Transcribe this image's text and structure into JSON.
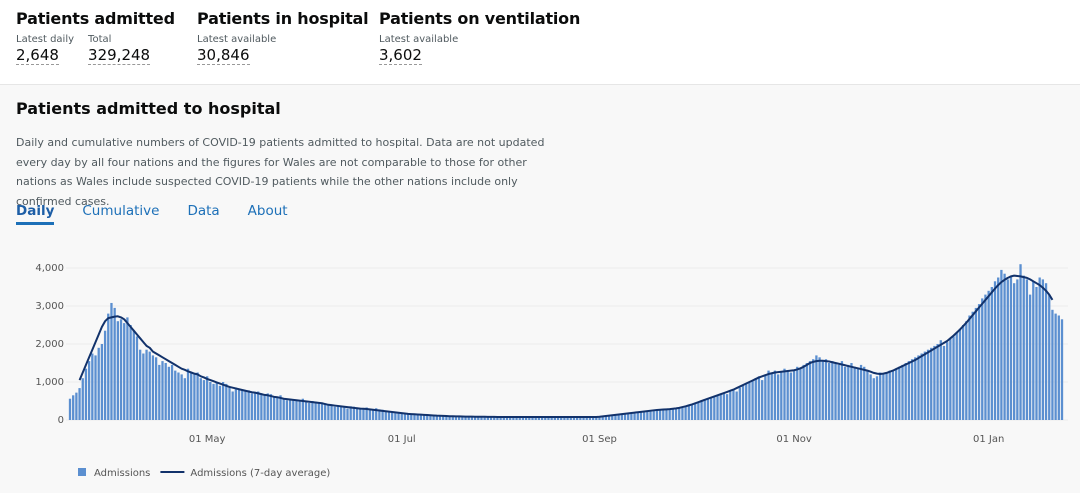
{
  "header": {
    "stats": [
      {
        "title": "Patients admitted",
        "items": [
          {
            "label": "Latest daily",
            "value": "2,648"
          },
          {
            "label": "Total",
            "value": "329,248"
          }
        ]
      },
      {
        "title": "Patients in hospital",
        "items": [
          {
            "label": "Latest available",
            "value": "30,846"
          }
        ]
      },
      {
        "title": "Patients on ventilation",
        "items": [
          {
            "label": "Latest available",
            "value": "3,602"
          }
        ]
      }
    ]
  },
  "card": {
    "title": "Patients admitted to hospital",
    "description": "Daily and cumulative numbers of COVID-19 patients admitted to hospital. Data are not updated every day by all four nations and the figures for Wales are not comparable to those for other nations as Wales include suspected COVID-19 patients while the other nations include only confirmed cases.",
    "tabs": [
      "Daily",
      "Cumulative",
      "Data",
      "About"
    ]
  },
  "chart_data": {
    "type": "bar",
    "categories": [
      null,
      null,
      null,
      null,
      null,
      null,
      null,
      null,
      null,
      null,
      null,
      null,
      null,
      null,
      null,
      null,
      null,
      null,
      null,
      null,
      null,
      null,
      null,
      null,
      null,
      null,
      null,
      null,
      null,
      null,
      null,
      null,
      null,
      null,
      null,
      null,
      null,
      null,
      null,
      null,
      null,
      null,
      null,
      "01 May",
      null,
      null,
      null,
      null,
      null,
      null,
      null,
      null,
      null,
      null,
      null,
      null,
      null,
      null,
      null,
      null,
      null,
      null,
      null,
      null,
      null,
      null,
      null,
      null,
      null,
      null,
      null,
      null,
      null,
      null,
      null,
      null,
      null,
      null,
      null,
      null,
      null,
      null,
      null,
      null,
      null,
      null,
      null,
      null,
      null,
      null,
      null,
      null,
      null,
      null,
      null,
      null,
      null,
      null,
      null,
      null,
      null,
      null,
      null,
      null,
      "01 Jul",
      null,
      null,
      null,
      null,
      null,
      null,
      null,
      null,
      null,
      null,
      null,
      null,
      null,
      null,
      null,
      null,
      null,
      null,
      null,
      null,
      null,
      null,
      null,
      null,
      null,
      null,
      null,
      null,
      null,
      null,
      null,
      null,
      null,
      null,
      null,
      null,
      null,
      null,
      null,
      null,
      null,
      null,
      null,
      null,
      null,
      null,
      null,
      null,
      null,
      null,
      null,
      null,
      null,
      null,
      null,
      null,
      null,
      null,
      null,
      null,
      null,
      "01 Sep",
      null,
      null,
      null,
      null,
      null,
      null,
      null,
      null,
      null,
      null,
      null,
      null,
      null,
      null,
      null,
      null,
      null,
      null,
      null,
      null,
      null,
      null,
      null,
      null,
      null,
      null,
      null,
      null,
      null,
      null,
      null,
      null,
      null,
      null,
      null,
      null,
      null,
      null,
      null,
      null,
      null,
      null,
      null,
      null,
      null,
      null,
      null,
      null,
      null,
      null,
      null,
      null,
      null,
      null,
      null,
      null,
      null,
      null,
      null,
      null,
      "01 Nov",
      null,
      null,
      null,
      null,
      null,
      null,
      null,
      null,
      null,
      null,
      null,
      null,
      null,
      null,
      null,
      null,
      null,
      null,
      null,
      null,
      null,
      null,
      null,
      null,
      null,
      null,
      null,
      null,
      null,
      null,
      null,
      null,
      null,
      null,
      null,
      null,
      null,
      null,
      null,
      null,
      null,
      null,
      null,
      null,
      null,
      null,
      null,
      null,
      null,
      null,
      null,
      null,
      null,
      null,
      null,
      null,
      null,
      null,
      null,
      null,
      "01 Jan",
      null,
      null,
      null,
      null,
      null,
      null,
      null,
      null,
      null,
      null,
      null,
      null,
      null,
      null,
      null,
      null,
      null,
      null,
      null,
      null,
      null,
      null,
      null
    ],
    "series": [
      {
        "name": "Admissions",
        "type": "bar",
        "color": "#5b8fd0",
        "values": [
          560,
          650,
          720,
          840,
          1100,
          1350,
          1550,
          1750,
          1700,
          1900,
          2000,
          2350,
          2800,
          3080,
          2950,
          2600,
          2650,
          2550,
          2700,
          2500,
          2350,
          2200,
          1850,
          1750,
          1850,
          1800,
          1700,
          1650,
          1450,
          1550,
          1500,
          1400,
          1450,
          1300,
          1250,
          1200,
          1100,
          1350,
          1250,
          1200,
          1250,
          1100,
          1050,
          1150,
          1000,
          950,
          1000,
          900,
          1000,
          950,
          850,
          750,
          850,
          820,
          800,
          750,
          780,
          700,
          720,
          750,
          700,
          650,
          700,
          680,
          620,
          600,
          650,
          560,
          520,
          560,
          540,
          500,
          520,
          560,
          480,
          450,
          500,
          480,
          450,
          420,
          440,
          400,
          380,
          350,
          380,
          360,
          340,
          300,
          360,
          350,
          330,
          320,
          300,
          330,
          280,
          260,
          310,
          280,
          270,
          240,
          230,
          200,
          180,
          190,
          170,
          160,
          150,
          150,
          140,
          140,
          130,
          130,
          120,
          120,
          110,
          120,
          110,
          110,
          100,
          100,
          100,
          95,
          95,
          90,
          90,
          90,
          85,
          85,
          85,
          80,
          80,
          85,
          80,
          80,
          75,
          80,
          80,
          75,
          80,
          75,
          75,
          80,
          75,
          75,
          80,
          80,
          75,
          80,
          80,
          75,
          80,
          80,
          75,
          80,
          80,
          80,
          75,
          80,
          80,
          80,
          80,
          80,
          75,
          80,
          80,
          80,
          90,
          100,
          110,
          120,
          130,
          140,
          150,
          160,
          170,
          180,
          190,
          200,
          210,
          220,
          230,
          240,
          250,
          260,
          270,
          280,
          270,
          290,
          300,
          280,
          310,
          330,
          340,
          370,
          400,
          420,
          450,
          480,
          520,
          550,
          580,
          600,
          630,
          650,
          700,
          720,
          680,
          760,
          800,
          750,
          850,
          900,
          950,
          1000,
          1050,
          1100,
          1150,
          1050,
          1200,
          1300,
          1250,
          1300,
          1200,
          1250,
          1350,
          1300,
          1250,
          1300,
          1400,
          1350,
          1450,
          1500,
          1550,
          1600,
          1700,
          1650,
          1550,
          1600,
          1500,
          1550,
          1500,
          1450,
          1550,
          1400,
          1450,
          1500,
          1400,
          1350,
          1450,
          1400,
          1300,
          1200,
          1100,
          1150,
          1250,
          1200,
          1250,
          1300,
          1300,
          1350,
          1400,
          1450,
          1500,
          1550,
          1600,
          1650,
          1700,
          1750,
          1800,
          1850,
          1900,
          1950,
          2000,
          2100,
          1950,
          2050,
          2150,
          2200,
          2300,
          2400,
          2500,
          2600,
          2750,
          2850,
          2950,
          3050,
          3200,
          3300,
          3400,
          3500,
          3650,
          3750,
          3950,
          3850,
          3700,
          3800,
          3600,
          3700,
          4100,
          3800,
          3700,
          3300,
          3650,
          3500,
          3750,
          3700,
          3600,
          3300,
          2900,
          2800,
          2750,
          2650
        ]
      },
      {
        "name": "Admissions (7-day average)",
        "type": "line",
        "color": "#12326b",
        "values": [
          null,
          null,
          null,
          1050,
          1250,
          1450,
          1650,
          1850,
          2050,
          2250,
          2450,
          2600,
          2680,
          2700,
          2720,
          2730,
          2700,
          2650,
          2550,
          2450,
          2350,
          2250,
          2150,
          2050,
          1950,
          1900,
          1800,
          1750,
          1700,
          1650,
          1600,
          1550,
          1500,
          1450,
          1400,
          1350,
          1320,
          1280,
          1250,
          1220,
          1200,
          1150,
          1120,
          1080,
          1050,
          1020,
          990,
          960,
          930,
          900,
          870,
          850,
          830,
          810,
          790,
          770,
          750,
          730,
          720,
          700,
          680,
          660,
          650,
          630,
          610,
          600,
          580,
          560,
          550,
          540,
          530,
          520,
          510,
          500,
          490,
          480,
          470,
          460,
          450,
          440,
          420,
          400,
          390,
          380,
          370,
          360,
          350,
          340,
          330,
          320,
          310,
          300,
          295,
          290,
          280,
          270,
          260,
          250,
          240,
          230,
          220,
          210,
          200,
          190,
          180,
          170,
          160,
          155,
          150,
          145,
          140,
          135,
          130,
          125,
          120,
          115,
          112,
          110,
          105,
          100,
          98,
          96,
          94,
          92,
          90,
          89,
          88,
          87,
          86,
          85,
          84,
          83,
          82,
          81,
          80,
          80,
          80,
          80,
          80,
          80,
          80,
          80,
          80,
          80,
          80,
          80,
          80,
          80,
          80,
          80,
          80,
          80,
          80,
          80,
          80,
          80,
          80,
          80,
          80,
          80,
          80,
          80,
          80,
          80,
          80,
          80,
          85,
          95,
          105,
          115,
          125,
          135,
          145,
          155,
          165,
          175,
          185,
          195,
          205,
          215,
          225,
          235,
          245,
          255,
          262,
          270,
          275,
          280,
          285,
          295,
          305,
          320,
          340,
          360,
          385,
          410,
          440,
          470,
          500,
          530,
          560,
          590,
          620,
          650,
          680,
          710,
          740,
          770,
          800,
          840,
          880,
          920,
          960,
          1000,
          1040,
          1080,
          1120,
          1150,
          1180,
          1210,
          1230,
          1250,
          1260,
          1270,
          1280,
          1290,
          1300,
          1310,
          1330,
          1360,
          1400,
          1450,
          1500,
          1530,
          1550,
          1560,
          1560,
          1550,
          1540,
          1520,
          1500,
          1480,
          1460,
          1440,
          1420,
          1400,
          1380,
          1360,
          1340,
          1320,
          1300,
          1270,
          1240,
          1220,
          1210,
          1220,
          1240,
          1270,
          1300,
          1340,
          1380,
          1420,
          1460,
          1500,
          1540,
          1580,
          1630,
          1680,
          1730,
          1780,
          1830,
          1880,
          1930,
          1980,
          2030,
          2080,
          2150,
          2220,
          2300,
          2380,
          2470,
          2560,
          2660,
          2760,
          2860,
          2960,
          3060,
          3160,
          3260,
          3360,
          3460,
          3550,
          3630,
          3690,
          3740,
          3780,
          3800,
          3790,
          3780,
          3760,
          3740,
          3700,
          3650,
          3600,
          3550,
          3480,
          3400,
          3300,
          3160,
          null,
          null,
          null
        ]
      }
    ],
    "ylim": [
      0,
      4000
    ],
    "yticks": [
      0,
      {
        "value": 1000,
        "label": "1,000"
      },
      {
        "value": 2000,
        "label": "2,000"
      },
      {
        "value": 3000,
        "label": "3,000"
      },
      {
        "value": 4000,
        "label": "4,000"
      }
    ],
    "grid": true
  }
}
